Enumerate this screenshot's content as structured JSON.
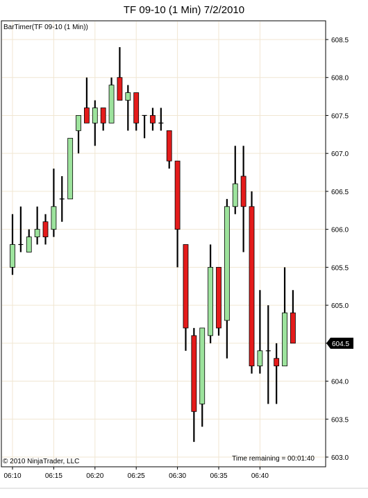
{
  "window_title": "TF 09-10 (1 Min)  7/2/2010",
  "indicator_label": "BarTimer(TF 09-10 (1 Min))",
  "copyright": "© 2010 NinjaTrader, LLC",
  "time_remaining": "Time remaining = 00:01:40",
  "last_price_label": "604.5",
  "colors": {
    "up": "#9de39d",
    "down": "#e41b1b",
    "wick": "#000000",
    "grid": "#f0e6d2"
  },
  "chart_data": {
    "type": "candlestick",
    "title": "TF 09-10 (1 Min)  7/2/2010",
    "ylim": [
      603.0,
      608.75
    ],
    "y_ticks": [
      "603.0",
      "603.5",
      "604.0",
      "604.5",
      "605.0",
      "605.5",
      "606.0",
      "606.5",
      "607.0",
      "607.5",
      "608.0",
      "608.5"
    ],
    "x_ticks": [
      "06:10",
      "06:15",
      "06:20",
      "06:25",
      "06:30",
      "06:35",
      "06:40"
    ],
    "grid": true,
    "last_price": 604.5,
    "bars": [
      {
        "o": 605.5,
        "h": 606.2,
        "l": 605.4,
        "c": 605.8
      },
      {
        "o": 605.8,
        "h": 606.3,
        "l": 605.7,
        "c": 605.8
      },
      {
        "o": 605.7,
        "h": 606.0,
        "l": 605.7,
        "c": 605.9
      },
      {
        "o": 605.9,
        "h": 606.3,
        "l": 605.8,
        "c": 606.0
      },
      {
        "o": 606.1,
        "h": 606.2,
        "l": 605.8,
        "c": 605.9
      },
      {
        "o": 606.0,
        "h": 606.8,
        "l": 605.9,
        "c": 606.3
      },
      {
        "o": 606.4,
        "h": 606.7,
        "l": 606.1,
        "c": 606.4
      },
      {
        "o": 606.4,
        "h": 607.2,
        "l": 606.4,
        "c": 607.2
      },
      {
        "o": 607.3,
        "h": 607.5,
        "l": 607.0,
        "c": 607.5
      },
      {
        "o": 607.6,
        "h": 608.0,
        "l": 607.4,
        "c": 607.4
      },
      {
        "o": 607.4,
        "h": 607.7,
        "l": 607.1,
        "c": 607.6
      },
      {
        "o": 607.6,
        "h": 607.6,
        "l": 607.3,
        "c": 607.4
      },
      {
        "o": 607.4,
        "h": 608.0,
        "l": 607.4,
        "c": 607.9
      },
      {
        "o": 608.0,
        "h": 608.4,
        "l": 607.7,
        "c": 607.7
      },
      {
        "o": 607.7,
        "h": 607.9,
        "l": 607.3,
        "c": 607.8
      },
      {
        "o": 607.8,
        "h": 607.8,
        "l": 607.3,
        "c": 607.4
      },
      {
        "o": 607.5,
        "h": 607.5,
        "l": 607.2,
        "c": 607.5
      },
      {
        "o": 607.5,
        "h": 607.6,
        "l": 607.3,
        "c": 607.4
      },
      {
        "o": 607.4,
        "h": 607.6,
        "l": 607.3,
        "c": 607.4
      },
      {
        "o": 607.3,
        "h": 607.3,
        "l": 606.8,
        "c": 606.9
      },
      {
        "o": 606.9,
        "h": 606.9,
        "l": 605.5,
        "c": 606.0
      },
      {
        "o": 605.8,
        "h": 605.8,
        "l": 604.4,
        "c": 604.7
      },
      {
        "o": 604.6,
        "h": 604.7,
        "l": 603.2,
        "c": 603.6
      },
      {
        "o": 603.7,
        "h": 604.7,
        "l": 603.4,
        "c": 604.7
      },
      {
        "o": 604.6,
        "h": 605.8,
        "l": 604.5,
        "c": 605.5
      },
      {
        "o": 605.5,
        "h": 605.5,
        "l": 604.6,
        "c": 604.7
      },
      {
        "o": 604.8,
        "h": 606.4,
        "l": 604.3,
        "c": 606.3
      },
      {
        "o": 606.3,
        "h": 607.1,
        "l": 606.2,
        "c": 606.6
      },
      {
        "o": 606.7,
        "h": 607.1,
        "l": 605.7,
        "c": 606.3
      },
      {
        "o": 606.3,
        "h": 606.5,
        "l": 604.1,
        "c": 604.2
      },
      {
        "o": 604.2,
        "h": 605.2,
        "l": 604.1,
        "c": 604.4
      },
      {
        "o": 604.4,
        "h": 605.0,
        "l": 603.7,
        "c": 604.4
      },
      {
        "o": 604.3,
        "h": 604.5,
        "l": 603.7,
        "c": 604.2
      },
      {
        "o": 604.2,
        "h": 605.5,
        "l": 604.2,
        "c": 604.9
      },
      {
        "o": 604.9,
        "h": 605.2,
        "l": 604.5,
        "c": 604.5
      }
    ]
  }
}
